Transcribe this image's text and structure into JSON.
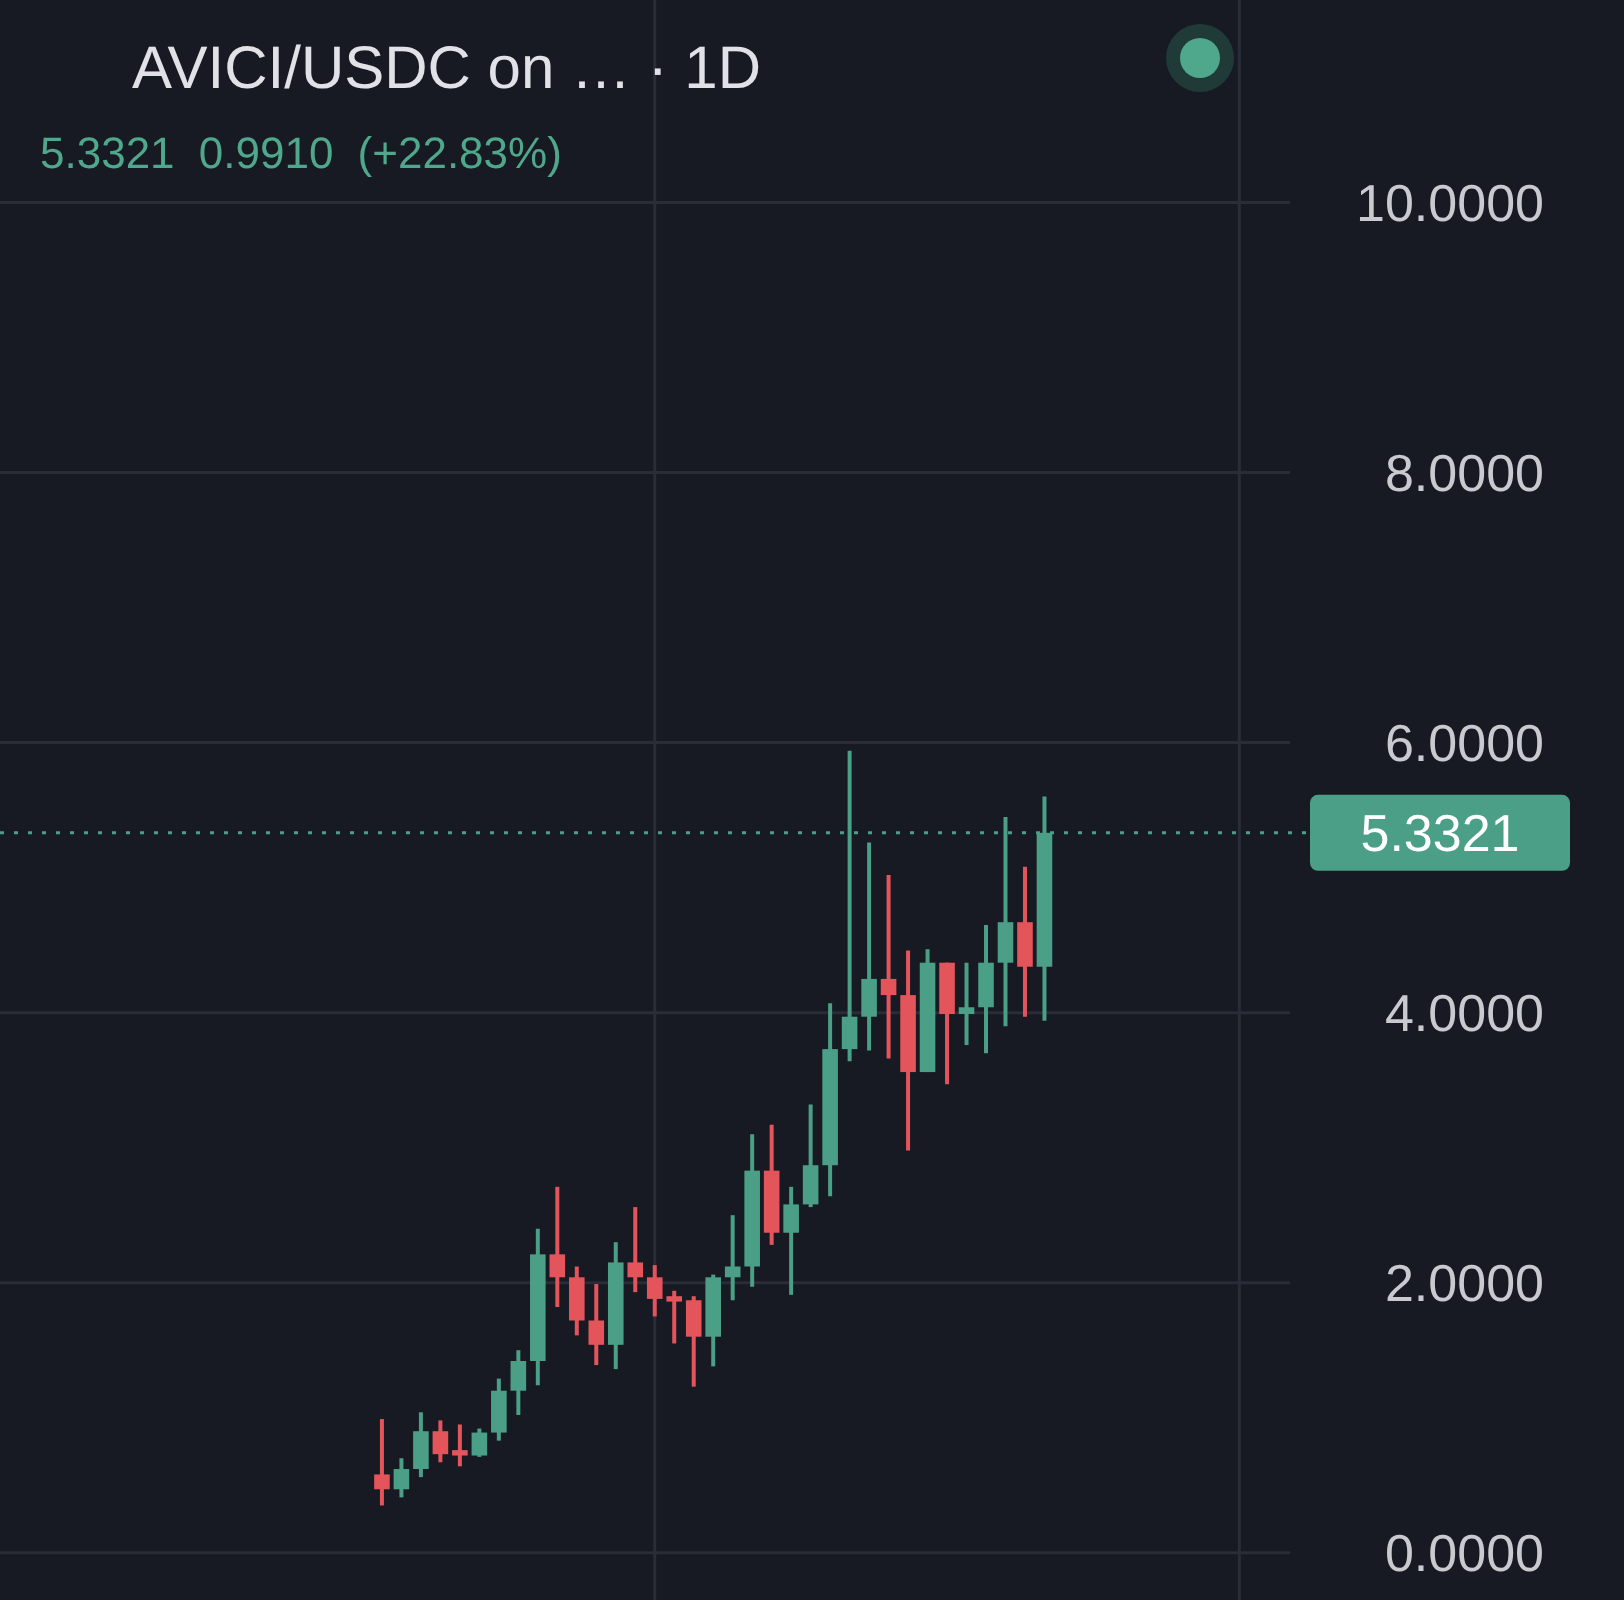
{
  "chart_data": {
    "type": "candlestick",
    "title": "AVICI/USDC on … · 1D",
    "subtitle": "5.3321 0.9910 (+22.83%)",
    "categories": [
      null,
      null,
      null,
      null,
      null,
      null,
      null,
      null,
      null,
      null,
      null,
      null,
      null,
      null,
      null,
      null,
      null,
      null,
      null,
      null,
      null,
      null,
      null,
      null,
      null,
      null,
      null,
      null,
      null,
      null,
      null,
      null,
      null,
      null,
      null,
      null,
      null,
      null,
      null,
      null,
      null,
      null,
      null,
      null,
      null,
      null,
      null,
      null,
      null,
      null,
      null,
      null,
      null,
      null,
      null,
      null,
      null,
      null,
      null,
      null,
      null,
      null,
      null,
      null,
      null,
      null
    ],
    "ohlc": [
      null,
      null,
      null,
      null,
      null,
      null,
      null,
      null,
      null,
      null,
      null,
      null,
      null,
      null,
      null,
      null,
      null,
      null,
      null,
      [
        0.58,
        0.99,
        0.35,
        0.47
      ],
      [
        0.47,
        0.7,
        0.41,
        0.62
      ],
      [
        0.62,
        1.04,
        0.56,
        0.9
      ],
      [
        0.9,
        0.98,
        0.67,
        0.73
      ],
      [
        0.76,
        0.95,
        0.64,
        0.72
      ],
      [
        0.72,
        0.92,
        0.71,
        0.89
      ],
      [
        0.89,
        1.29,
        0.83,
        1.2
      ],
      [
        1.2,
        1.5,
        1.02,
        1.42
      ],
      [
        1.42,
        2.4,
        1.24,
        2.21
      ],
      [
        2.21,
        2.71,
        1.82,
        2.04
      ],
      [
        2.04,
        2.12,
        1.61,
        1.72
      ],
      [
        1.72,
        1.99,
        1.39,
        1.54
      ],
      [
        1.54,
        2.3,
        1.36,
        2.15
      ],
      [
        2.15,
        2.56,
        1.93,
        2.04
      ],
      [
        2.04,
        2.13,
        1.75,
        1.88
      ],
      [
        1.9,
        1.94,
        1.55,
        1.86
      ],
      [
        1.87,
        1.9,
        1.23,
        1.6
      ],
      [
        1.6,
        2.06,
        1.38,
        2.04
      ],
      [
        2.04,
        2.5,
        1.87,
        2.12
      ],
      [
        2.12,
        3.1,
        1.97,
        2.83
      ],
      [
        2.83,
        3.17,
        2.28,
        2.37
      ],
      [
        2.37,
        2.71,
        1.91,
        2.58
      ],
      [
        2.58,
        3.32,
        2.56,
        2.87
      ],
      [
        2.87,
        4.07,
        2.64,
        3.73
      ],
      [
        3.73,
        5.94,
        3.64,
        3.97
      ],
      [
        3.97,
        5.26,
        3.72,
        4.25
      ],
      [
        4.25,
        5.02,
        3.66,
        4.13
      ],
      [
        4.13,
        4.46,
        2.98,
        3.56
      ],
      [
        3.56,
        4.47,
        3.56,
        4.37
      ],
      [
        4.37,
        4.37,
        3.47,
        3.99
      ],
      [
        3.99,
        4.37,
        3.76,
        4.04
      ],
      [
        4.04,
        4.65,
        3.7,
        4.37
      ],
      [
        4.37,
        5.45,
        3.9,
        4.67
      ],
      [
        4.67,
        5.08,
        3.97,
        4.34
      ],
      [
        4.34,
        5.6,
        3.94,
        5.3321
      ],
      null,
      null,
      null,
      null,
      null,
      null,
      null,
      null,
      null,
      null,
      null,
      null
    ],
    "colors": [
      null,
      null,
      null,
      null,
      null,
      null,
      null,
      null,
      null,
      null,
      null,
      null,
      null,
      null,
      null,
      null,
      null,
      null,
      null,
      "#e4545b",
      "#4a9f86",
      "#4a9f86",
      "#e4545b",
      "#e4545b",
      "#4a9f86",
      "#4a9f86",
      "#4a9f86",
      "#4a9f86",
      "#e4545b",
      "#e4545b",
      "#e4545b",
      "#4a9f86",
      "#e4545b",
      "#e4545b",
      "#e4545b",
      "#e4545b",
      "#4a9f86",
      "#4a9f86",
      "#4a9f86",
      "#e4545b",
      "#4a9f86",
      "#4a9f86",
      "#4a9f86",
      "#4a9f86",
      "#4a9f86",
      "#e4545b",
      "#e4545b",
      "#4a9f86",
      "#e4545b",
      "#4a9f86",
      "#4a9f86",
      "#4a9f86",
      "#e4545b",
      "#4a9f86",
      null,
      null,
      null,
      null,
      null,
      null,
      null,
      null,
      null,
      null,
      null,
      null
    ],
    "ylim": [
      -0.35,
      11.5
    ],
    "yticks": [
      {
        "value": 0,
        "label": "0.0000"
      },
      {
        "value": 2,
        "label": "2.0000"
      },
      {
        "value": 4,
        "label": "4.0000"
      },
      {
        "value": 6,
        "label": "6.0000"
      },
      {
        "value": 8,
        "label": "8.0000"
      },
      {
        "value": 10,
        "label": "10.0000"
      }
    ],
    "grid": true,
    "ref_lines": [
      {
        "axis": "y",
        "value": 5.3321,
        "label": "5.3321",
        "color": "#4a9f86",
        "line_style": "dotted"
      }
    ]
  }
}
